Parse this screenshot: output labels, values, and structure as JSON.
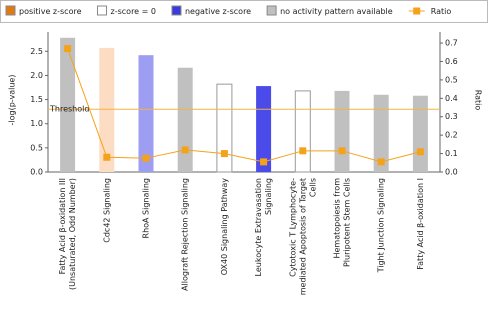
{
  "chart_data": {
    "type": "bar",
    "legend": [
      {
        "name": "positive z-score",
        "color": "#e07b14"
      },
      {
        "name": "z-score = 0",
        "color": "#ffffff"
      },
      {
        "name": "negative z-score",
        "color": "#3b3bdc"
      },
      {
        "name": "no activity pattern available",
        "color": "#c0c0c0"
      }
    ],
    "categories": [
      [
        "Fatty Acid β-oxidation III",
        "(Unsaturated, Odd Number)"
      ],
      [
        "Cdc42 Signaling"
      ],
      [
        "RhoA Signaling"
      ],
      [
        "Allograft Rejection Signaling"
      ],
      [
        "OX40 Signaling Pathway"
      ],
      [
        "Leukocyte Extravasation",
        "Signaling"
      ],
      [
        "Cytotoxic T Lymphocyte-",
        "mediated Apoptosis of Target",
        "Cells"
      ],
      [
        "Hematopoiesis from",
        "Pluripotent Stem Cells"
      ],
      [
        "Tight Junction Signaling"
      ],
      [
        "Fatty Acid β-oxidation I"
      ]
    ],
    "values": [
      2.78,
      2.57,
      2.42,
      2.16,
      1.82,
      1.78,
      1.68,
      1.68,
      1.6,
      1.58
    ],
    "bar_colors": [
      "#c0c0c0",
      "#fcdcc2",
      "#9d9df2",
      "#c0c0c0",
      "#ffffff",
      "#4b4bea",
      "#ffffff",
      "#c0c0c0",
      "#c0c0c0",
      "#c0c0c0"
    ],
    "series": [
      {
        "name": "Ratio",
        "color": "#f5a21b",
        "axis": "y2",
        "values": [
          0.67,
          0.08,
          0.075,
          0.12,
          0.1,
          0.055,
          0.115,
          0.115,
          0.055,
          0.11
        ]
      }
    ],
    "threshold": {
      "value": 1.3,
      "label": "Threshold"
    },
    "ylabel": "-log(p-value)",
    "y2label": "Ratio",
    "ylim": [
      0,
      2.9
    ],
    "yticks": [
      {
        "value": 0,
        "label": "0.0"
      },
      0.5,
      {
        "value": 1,
        "label": "1.0"
      },
      1.5,
      {
        "value": 2,
        "label": "2.0"
      },
      2.5
    ],
    "y2lim": [
      0,
      0.76
    ],
    "y2ticks": [
      {
        "value": 0,
        "label": "0.0"
      },
      0.1,
      0.2,
      0.3,
      0.4,
      0.5,
      0.6,
      0.7
    ]
  }
}
